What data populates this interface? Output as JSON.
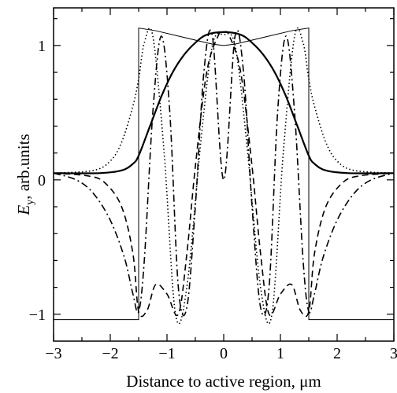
{
  "chart_data": {
    "type": "line",
    "title": "",
    "xlabel": "Distance to active region, μm",
    "ylabel_main": "E",
    "ylabel_sub": "y",
    "ylabel_rest": ", arb.units",
    "xlim": [
      -3,
      3
    ],
    "ylim": [
      -1.2,
      1.28
    ],
    "x_ticks": [
      -3,
      -2,
      -1,
      0,
      1,
      2,
      3
    ],
    "x_tick_labels": [
      "−3",
      "−2",
      "−1",
      "0",
      "1",
      "2",
      "3"
    ],
    "y_ticks": [
      -1,
      0,
      1
    ],
    "y_tick_labels": [
      "−1",
      "0",
      "1"
    ],
    "grid": false,
    "legend": "none",
    "series": [
      {
        "style": "thin-solid",
        "x": [
          -3,
          -1.5,
          -1.5,
          -1.5,
          -1.2,
          -0.8,
          -0.4,
          -0.2,
          0,
          0.2,
          0.4,
          0.8,
          1.2,
          1.5,
          1.5,
          1.5,
          3
        ],
        "y": [
          -1.04,
          -1.04,
          0.05,
          1.13,
          1.11,
          1.07,
          1.03,
          1.01,
          1.0,
          1.01,
          1.03,
          1.07,
          1.11,
          1.13,
          0.05,
          -1.04,
          -1.04
        ]
      },
      {
        "style": "thick-solid",
        "x": [
          -3,
          -2.2,
          -1.8,
          -1.6,
          -1.5,
          -1.3,
          -1.1,
          -0.9,
          -0.7,
          -0.5,
          -0.3,
          0,
          0.3,
          0.5,
          0.7,
          0.9,
          1.1,
          1.3,
          1.5,
          1.6,
          1.8,
          2.2,
          3
        ],
        "y": [
          0.05,
          0.05,
          0.07,
          0.12,
          0.18,
          0.4,
          0.62,
          0.8,
          0.93,
          1.02,
          1.08,
          1.1,
          1.08,
          1.02,
          0.93,
          0.8,
          0.62,
          0.4,
          0.18,
          0.12,
          0.07,
          0.05,
          0.05
        ]
      },
      {
        "style": "dotted",
        "x": [
          -3,
          -2.3,
          -2,
          -1.8,
          -1.6,
          -1.5,
          -1.4,
          -1.25,
          -1.05,
          -0.85,
          -0.65,
          -0.4,
          -0.2,
          0,
          0.2,
          0.4,
          0.65,
          0.85,
          1.05,
          1.25,
          1.4,
          1.5,
          1.6,
          1.8,
          2,
          2.3,
          3
        ],
        "y": [
          0.05,
          0.07,
          0.14,
          0.28,
          0.55,
          0.75,
          1.02,
          1.07,
          0.2,
          -1.0,
          -0.8,
          0.3,
          1.0,
          1.08,
          1.0,
          0.3,
          -0.8,
          -1.0,
          0.2,
          1.07,
          1.02,
          0.75,
          0.55,
          0.28,
          0.14,
          0.07,
          0.05
        ]
      },
      {
        "style": "dashed",
        "x": [
          -3,
          -2.4,
          -2.1,
          -1.8,
          -1.6,
          -1.5,
          -1.35,
          -1.2,
          -1.0,
          -0.8,
          -0.65,
          -0.5,
          -0.3,
          -0.1,
          0,
          0.1,
          0.3,
          0.5,
          0.65,
          0.8,
          1.0,
          1.2,
          1.35,
          1.5,
          1.6,
          1.8,
          2.1,
          2.4,
          3
        ],
        "y": [
          0.05,
          0.03,
          -0.02,
          -0.2,
          -0.55,
          -0.98,
          -0.97,
          -0.78,
          -0.85,
          -1.0,
          -0.55,
          0.1,
          0.8,
          1.07,
          1.1,
          1.07,
          0.8,
          0.1,
          -0.55,
          -1.0,
          -0.85,
          -0.78,
          -0.97,
          -0.98,
          -0.55,
          -0.2,
          -0.02,
          0.03,
          0.05
        ]
      },
      {
        "style": "dash-dot",
        "x": [
          -3,
          -2.6,
          -2.3,
          -2,
          -1.75,
          -1.6,
          -1.5,
          -1.4,
          -1.25,
          -1.1,
          -0.95,
          -0.8,
          -0.65,
          -0.5,
          -0.35,
          -0.2,
          0,
          0.2,
          0.35,
          0.5,
          0.65,
          0.8,
          0.95,
          1.1,
          1.25,
          1.4,
          1.5,
          1.6,
          1.75,
          2,
          2.3,
          2.6,
          3
        ],
        "y": [
          0.05,
          0.0,
          -0.1,
          -0.3,
          -0.58,
          -0.85,
          -0.98,
          -0.6,
          0.5,
          1.07,
          0.5,
          -0.8,
          -0.95,
          -0.2,
          0.8,
          1.07,
          0.0,
          1.07,
          0.8,
          -0.2,
          -0.95,
          -0.8,
          0.5,
          1.07,
          0.5,
          -0.6,
          -0.98,
          -0.85,
          -0.58,
          -0.3,
          -0.1,
          0.0,
          0.05
        ]
      }
    ]
  }
}
